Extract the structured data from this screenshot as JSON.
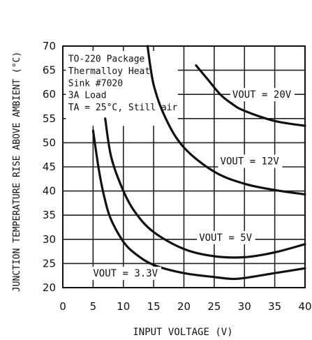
{
  "chart_data": {
    "type": "line",
    "title": "",
    "xlabel": "INPUT VOLTAGE (V)",
    "ylabel": "JUNCTION TEMPERATURE RISE ABOVE AMBIENT (°C)",
    "xlim": [
      0,
      40
    ],
    "ylim": [
      20,
      70
    ],
    "x_ticks": [
      "0",
      "5",
      "10",
      "15",
      "20",
      "25",
      "30",
      "35",
      "40"
    ],
    "y_ticks": [
      "20",
      "25",
      "30",
      "35",
      "40",
      "45",
      "50",
      "55",
      "60",
      "65",
      "70"
    ],
    "grid": true,
    "annotation": [
      "TO-220 Package",
      "Thermalloy Heat",
      "Sink #7020",
      "3A Load",
      "TA = 25°C, Still air"
    ],
    "series": [
      {
        "name": "VOUT = 3.3V",
        "points": [
          [
            5,
            52.5
          ],
          [
            6,
            44
          ],
          [
            7,
            38
          ],
          [
            8,
            34
          ],
          [
            10,
            29.5
          ],
          [
            12,
            27
          ],
          [
            15,
            24.7
          ],
          [
            20,
            23
          ],
          [
            25,
            22.2
          ],
          [
            28,
            21.8
          ],
          [
            30,
            22
          ],
          [
            35,
            23
          ],
          [
            40,
            24
          ]
        ]
      },
      {
        "name": "VOUT = 5V",
        "points": [
          [
            7,
            55
          ],
          [
            8,
            47
          ],
          [
            10,
            40
          ],
          [
            12,
            35.5
          ],
          [
            15,
            31.5
          ],
          [
            20,
            28
          ],
          [
            25,
            26.5
          ],
          [
            30,
            26.3
          ],
          [
            35,
            27.3
          ],
          [
            40,
            29
          ]
        ]
      },
      {
        "name": "VOUT = 12V",
        "points": [
          [
            14,
            70
          ],
          [
            15,
            62
          ],
          [
            17,
            55
          ],
          [
            20,
            49
          ],
          [
            25,
            44
          ],
          [
            30,
            41.5
          ],
          [
            35,
            40.2
          ],
          [
            40,
            39.3
          ]
        ]
      },
      {
        "name": "VOUT = 20V",
        "points": [
          [
            22,
            66
          ],
          [
            24,
            63
          ],
          [
            26,
            60
          ],
          [
            28,
            58
          ],
          [
            30,
            56.6
          ],
          [
            35,
            54.5
          ],
          [
            40,
            53.5
          ]
        ]
      }
    ],
    "series_labels": [
      {
        "text": "VOUT = 3.3V",
        "x": 5,
        "y": 22.3
      },
      {
        "text": "VOUT = 5V",
        "x": 22.5,
        "y": 29.7
      },
      {
        "text": "VOUT = 12V",
        "x": 26,
        "y": 45.5
      },
      {
        "text": "VOUT = 20V",
        "x": 28,
        "y": 59.3
      }
    ]
  }
}
